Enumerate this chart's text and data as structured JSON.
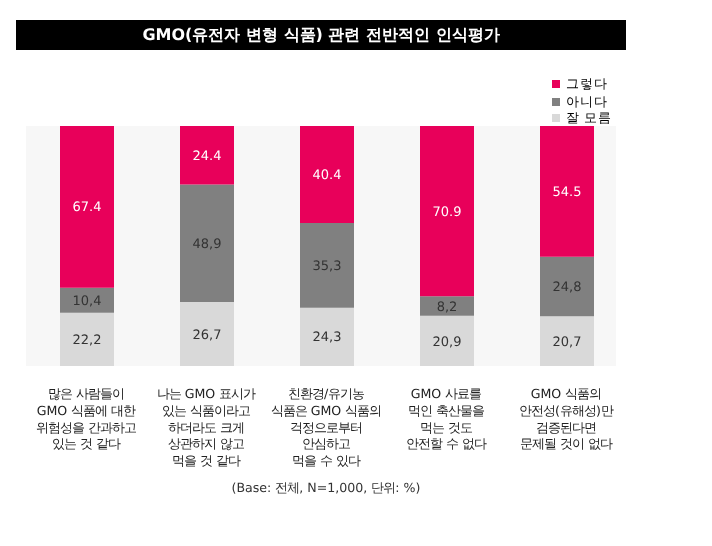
{
  "chart_data": {
    "type": "bar",
    "title": "GMO(유전자 변형 식품) 관련 전반적인 인식평가",
    "categories": [
      "많은 사람들이\nGMO 식품에 대한\n위험성을 간과하고\n있는 것 같다",
      "나는 GMO 표시가\n있는 식품이라고\n하더라도 크게\n상관하지 않고\n먹을 것 같다",
      "친환경/유기농\n식품은 GMO 식품의\n걱정으로부터\n안심하고\n먹을 수 있다",
      "GMO 사료를\n먹인 축산물을\n먹는 것도\n안전할 수 없다",
      "GMO 식품의\n안전성(유해성)만\n검증된다면\n문제될 것이 없다"
    ],
    "series": [
      {
        "name": "잘 모름",
        "color": "#d9d9d9",
        "values": [
          22.2,
          26.7,
          24.3,
          20.9,
          20.7
        ],
        "value_labels": [
          "22,2",
          "26,7",
          "24,3",
          "20,9",
          "20,7"
        ]
      },
      {
        "name": "아니다",
        "color": "#808080",
        "values": [
          10.4,
          48.9,
          35.3,
          8.2,
          24.8
        ],
        "value_labels": [
          "10,4",
          "48,9",
          "35,3",
          "8,2",
          "24,8"
        ]
      },
      {
        "name": "그렇다",
        "color": "#e8005a",
        "values": [
          67.4,
          24.4,
          40.4,
          70.9,
          54.5
        ],
        "value_labels": [
          "67.4",
          "24.4",
          "40.4",
          "70.9",
          "54.5"
        ]
      }
    ],
    "stacked": true,
    "ylim": [
      0,
      100
    ],
    "tick_labels": "x",
    "legend": "top right",
    "grid": false,
    "annotations": [
      "(Base: 전체, N=1,000, 단위: %)"
    ]
  }
}
